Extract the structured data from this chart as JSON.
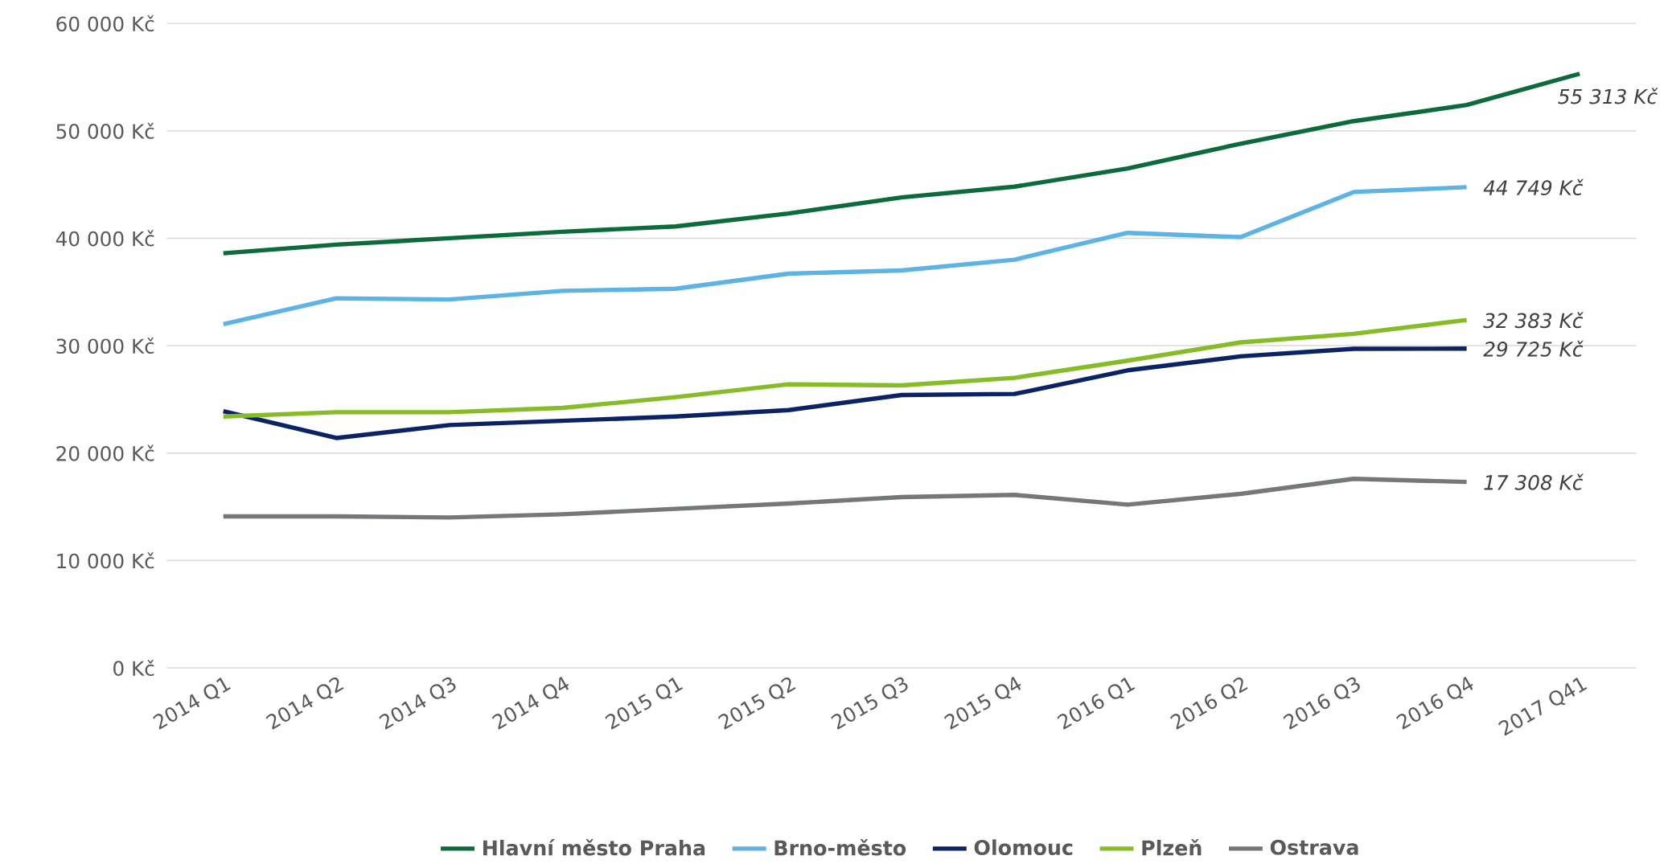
{
  "chart_data": {
    "type": "line",
    "categories": [
      "2014 Q1",
      "2014 Q2",
      "2014 Q3",
      "2014 Q4",
      "2015 Q1",
      "2015 Q2",
      "2015 Q3",
      "2015 Q4",
      "2016 Q1",
      "2016 Q2",
      "2016 Q3",
      "2016 Q4",
      "2017 Q41"
    ],
    "series": [
      {
        "name": "Hlavní město Praha",
        "color": "#0b6b3a",
        "values": [
          38600,
          39400,
          40000,
          40600,
          41100,
          42300,
          43800,
          44800,
          46500,
          48800,
          50900,
          52400,
          55313
        ],
        "value_labels": [
          null,
          null,
          null,
          null,
          null,
          null,
          null,
          null,
          null,
          null,
          null,
          null,
          "55 313 Kč"
        ]
      },
      {
        "name": "Brno-město",
        "color": "#5db3e4",
        "values": [
          32000,
          34400,
          34300,
          35100,
          35300,
          36700,
          37000,
          38000,
          40500,
          40100,
          44300,
          44749,
          null
        ],
        "value_labels": [
          null,
          null,
          null,
          null,
          null,
          null,
          null,
          null,
          null,
          null,
          null,
          "44 749 Kč",
          null
        ]
      },
      {
        "name": "Olomouc",
        "color": "#0b2265",
        "values": [
          23900,
          21400,
          22600,
          23000,
          23400,
          24000,
          25400,
          25500,
          27700,
          29000,
          29700,
          29725,
          null
        ],
        "value_labels": [
          null,
          null,
          null,
          null,
          null,
          null,
          null,
          null,
          null,
          null,
          null,
          "29 725 Kč",
          null
        ]
      },
      {
        "name": "Plzeň",
        "color": "#86bc25",
        "values": [
          23400,
          23800,
          23800,
          24200,
          25200,
          26400,
          26300,
          27000,
          28600,
          30300,
          31100,
          32383,
          null
        ],
        "value_labels": [
          null,
          null,
          null,
          null,
          null,
          null,
          null,
          null,
          null,
          null,
          null,
          "32 383 Kč",
          null
        ]
      },
      {
        "name": "Ostrava",
        "color": "#75787b",
        "values": [
          14100,
          14100,
          14000,
          14300,
          14800,
          15300,
          15900,
          16100,
          15200,
          16200,
          17600,
          17308,
          null
        ],
        "value_labels": [
          null,
          null,
          null,
          null,
          null,
          null,
          null,
          null,
          null,
          null,
          null,
          "17 308 Kč",
          null
        ]
      }
    ],
    "ylim": [
      0,
      60000
    ],
    "yticks": [
      {
        "value": 0,
        "label": "0 Kč"
      },
      {
        "value": 10000,
        "label": "10 000 Kč"
      },
      {
        "value": 20000,
        "label": "20 000 Kč"
      },
      {
        "value": 30000,
        "label": "30 000 Kč"
      },
      {
        "value": 40000,
        "label": "40 000 Kč"
      },
      {
        "value": 50000,
        "label": "50 000 Kč"
      },
      {
        "value": 60000,
        "label": "60 000 Kč"
      }
    ],
    "grid": "y",
    "legend": "bottom",
    "marker": "none",
    "line_style": "solid"
  }
}
